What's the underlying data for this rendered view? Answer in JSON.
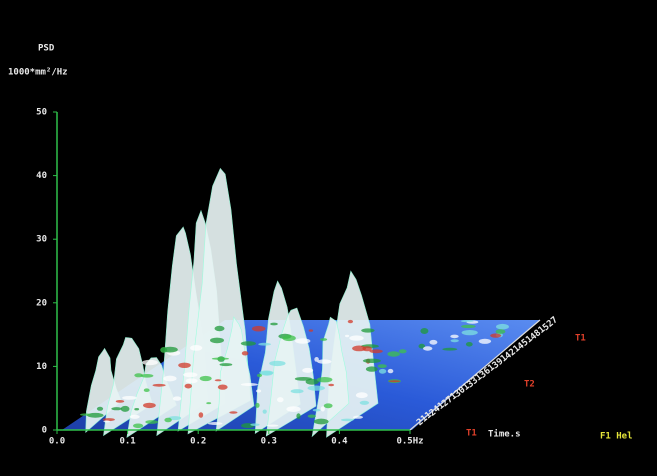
{
  "chart_data": {
    "type": "waterfall3d",
    "title": "PSD",
    "y_label": "1000*mm²/Hz",
    "z_label": "Time.s",
    "footer": "F1 Hel",
    "xlim": [
      0,
      0.5
    ],
    "xticks": [
      {
        "value": 0,
        "label": "0.0"
      },
      0.1,
      0.2,
      0.3,
      0.4,
      {
        "value": 0.5,
        "label": "0.5Hz"
      }
    ],
    "ylim": [
      0,
      50
    ],
    "yticks": [
      0,
      10,
      20,
      30,
      40,
      50
    ],
    "zticks": [
      "527",
      "481",
      "451",
      "421",
      "391",
      "361",
      "331",
      "301",
      "271",
      "241",
      "211"
    ],
    "markers": [
      "T1",
      "T2",
      "T1"
    ],
    "axis_color": "#2fbf4a",
    "text_color": "#e8e8e8",
    "marker_color": "#e0402a",
    "footer_color": "#e6e63a"
  }
}
